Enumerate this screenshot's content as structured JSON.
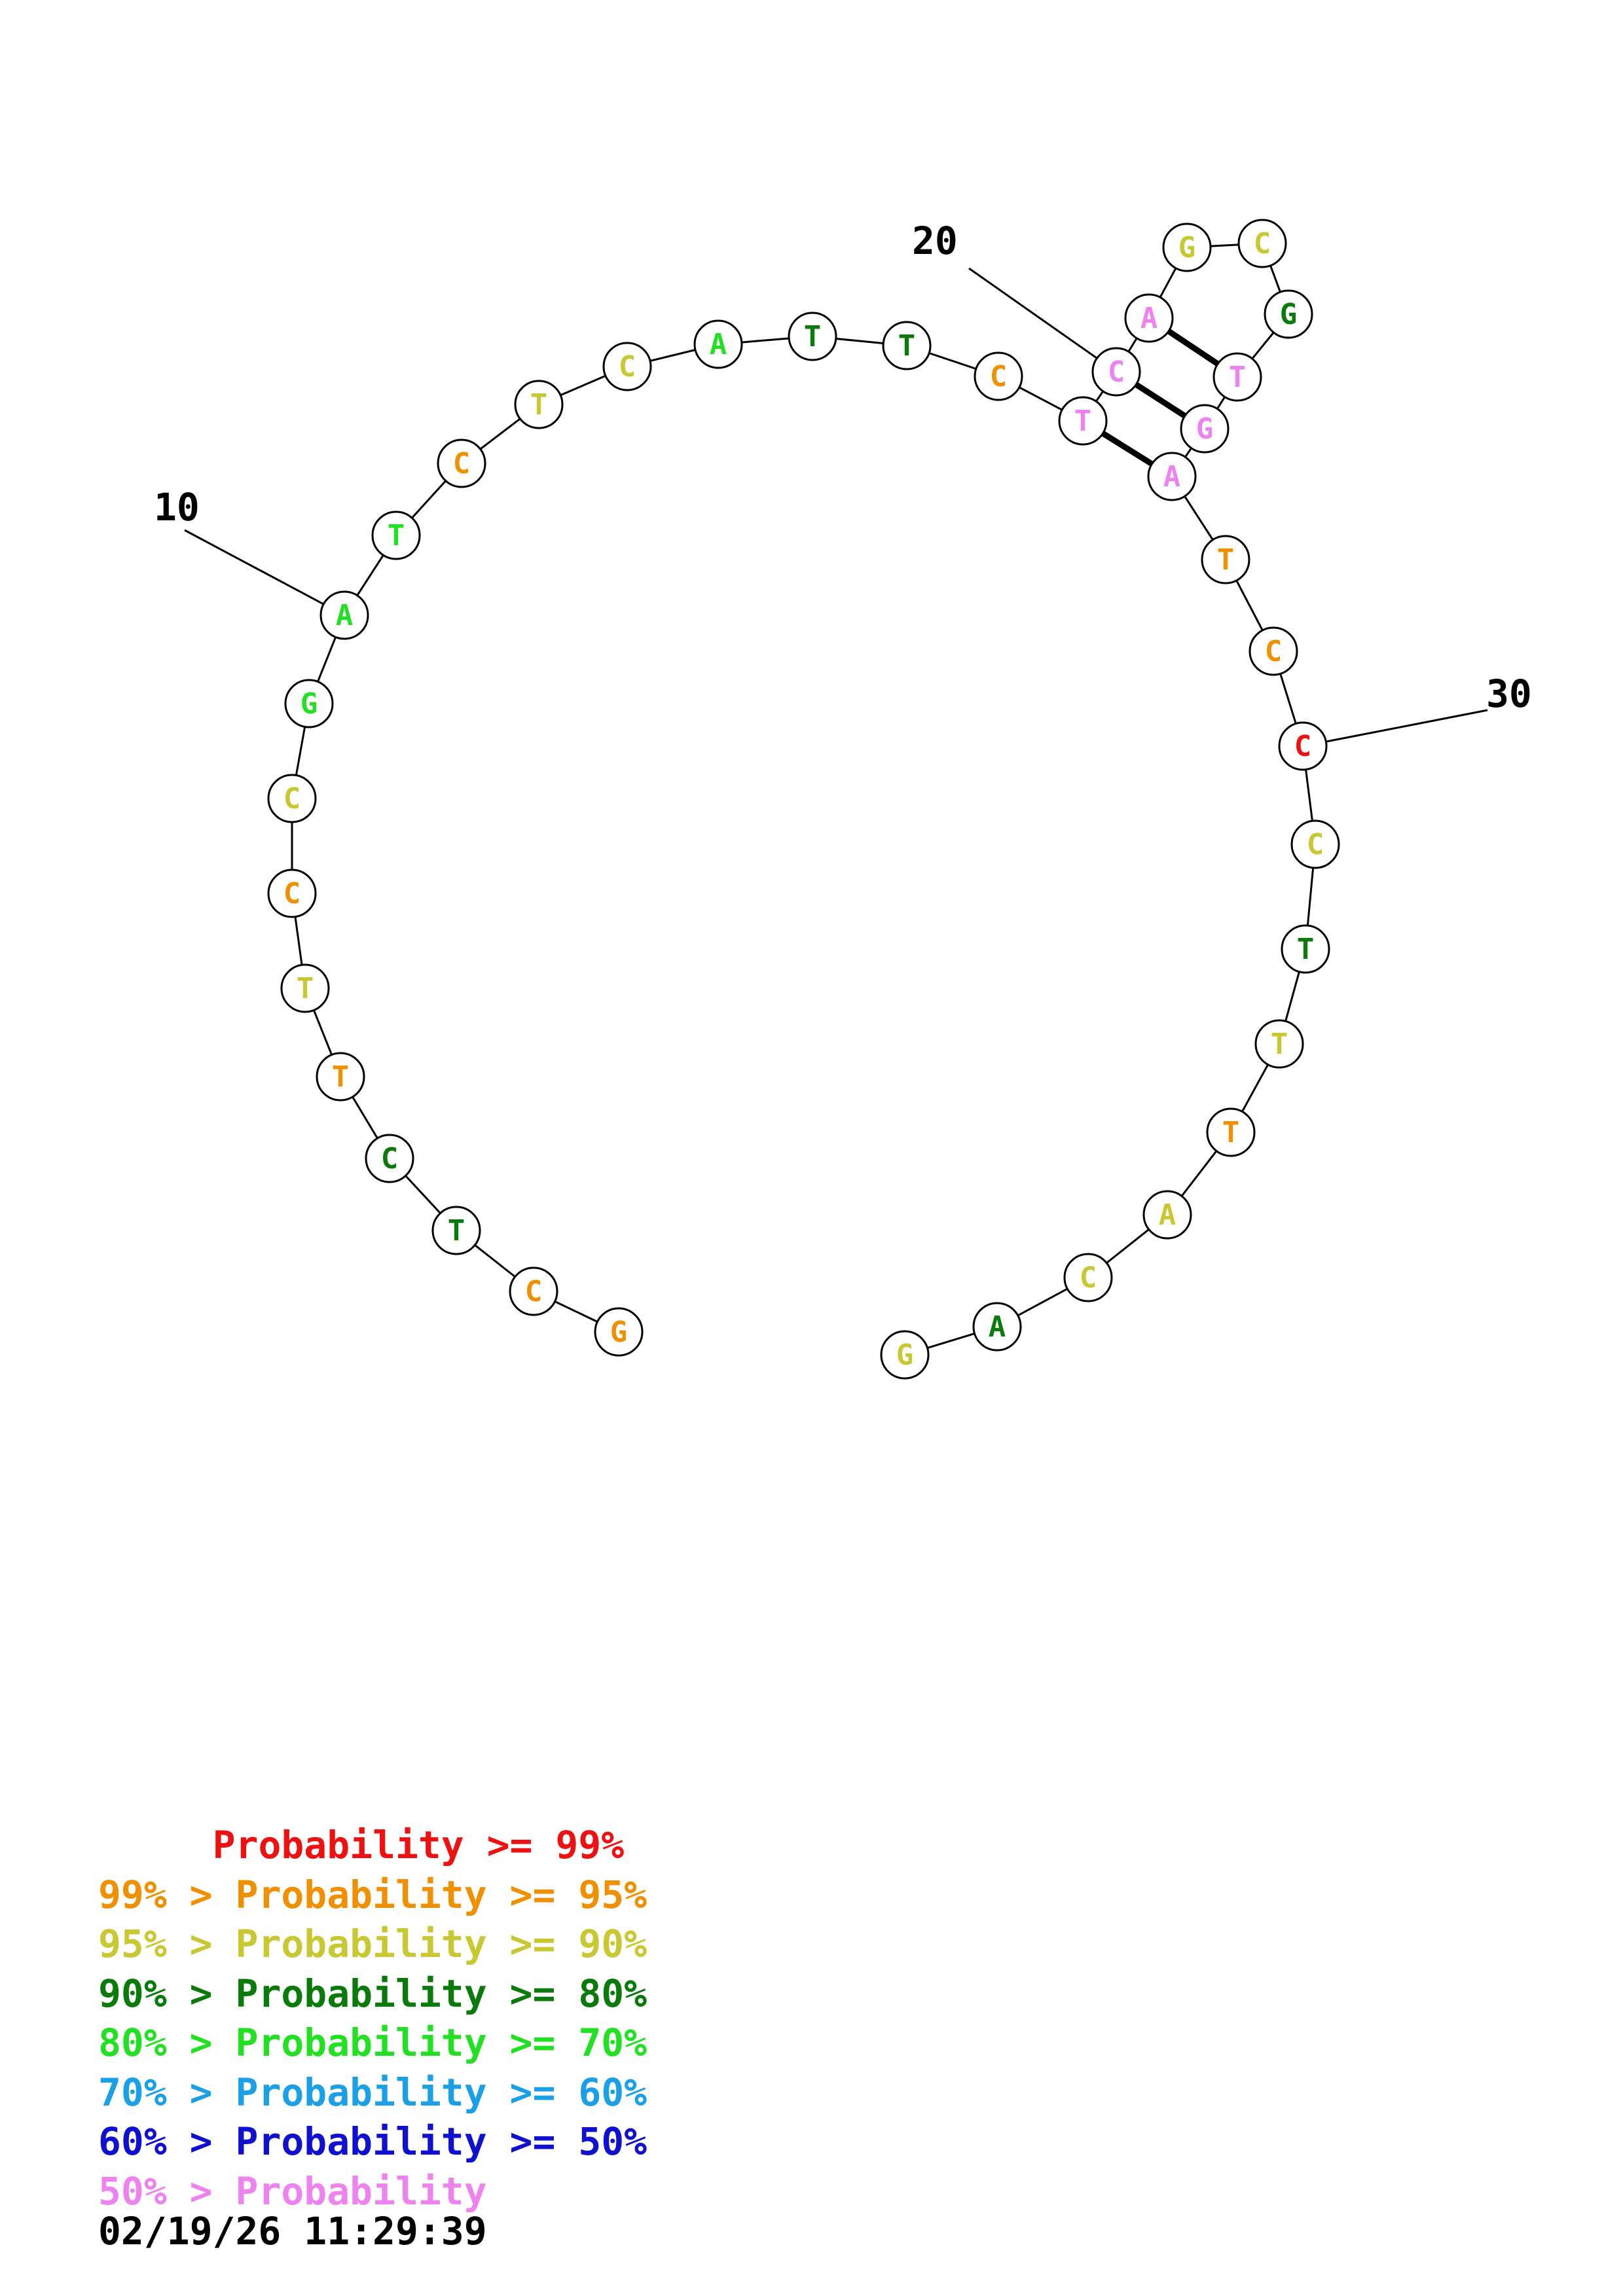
{
  "sequence": [
    {
      "base": "G",
      "color": "#F09000"
    },
    {
      "base": "C",
      "color": "#F09000"
    },
    {
      "base": "T",
      "color": "#0A7A0A"
    },
    {
      "base": "C",
      "color": "#0A7A0A"
    },
    {
      "base": "T",
      "color": "#F09000"
    },
    {
      "base": "T",
      "color": "#C8C832"
    },
    {
      "base": "C",
      "color": "#F09000"
    },
    {
      "base": "C",
      "color": "#C8C832"
    },
    {
      "base": "G",
      "color": "#22E022"
    },
    {
      "base": "A",
      "color": "#22E022"
    },
    {
      "base": "T",
      "color": "#22E022"
    },
    {
      "base": "C",
      "color": "#F09000"
    },
    {
      "base": "T",
      "color": "#C8C832"
    },
    {
      "base": "C",
      "color": "#C8C832"
    },
    {
      "base": "A",
      "color": "#22E022"
    },
    {
      "base": "T",
      "color": "#0A7A0A"
    },
    {
      "base": "T",
      "color": "#0A7A0A"
    },
    {
      "base": "C",
      "color": "#F09000"
    },
    {
      "base": "T",
      "color": "#EE82EE"
    },
    {
      "base": "C",
      "color": "#EE82EE"
    },
    {
      "base": "A",
      "color": "#EE82EE"
    },
    {
      "base": "G",
      "color": "#C8C832"
    },
    {
      "base": "C",
      "color": "#C8C832"
    },
    {
      "base": "G",
      "color": "#0A7A0A"
    },
    {
      "base": "T",
      "color": "#EE82EE"
    },
    {
      "base": "G",
      "color": "#EE82EE"
    },
    {
      "base": "A",
      "color": "#EE82EE"
    },
    {
      "base": "T",
      "color": "#F09000"
    },
    {
      "base": "C",
      "color": "#F09000"
    },
    {
      "base": "C",
      "color": "#EE1111"
    },
    {
      "base": "C",
      "color": "#C8C832"
    },
    {
      "base": "T",
      "color": "#0A7A0A"
    },
    {
      "base": "T",
      "color": "#C8C832"
    },
    {
      "base": "T",
      "color": "#F09000"
    },
    {
      "base": "A",
      "color": "#C8C832"
    },
    {
      "base": "C",
      "color": "#C8C832"
    },
    {
      "base": "A",
      "color": "#0A7A0A"
    },
    {
      "base": "G",
      "color": "#C8C832"
    }
  ],
  "pairs": [
    [
      19,
      27
    ],
    [
      20,
      26
    ],
    [
      21,
      25
    ]
  ],
  "position_labels": [
    {
      "position": 10,
      "text": "10"
    },
    {
      "position": 20,
      "text": "20"
    },
    {
      "position": 30,
      "text": "30"
    }
  ],
  "legend": [
    {
      "prefix": "    ",
      "rest": " Probability >= 99%",
      "color": "#EE1111"
    },
    {
      "prefix": "99% >",
      "rest": " Probability >= 95%",
      "color": "#F09000"
    },
    {
      "prefix": "95% >",
      "rest": " Probability >= 90%",
      "color": "#C8C832"
    },
    {
      "prefix": "90% >",
      "rest": " Probability >= 80%",
      "color": "#0A7A0A"
    },
    {
      "prefix": "80% >",
      "rest": " Probability >= 70%",
      "color": "#22E022"
    },
    {
      "prefix": "70% >",
      "rest": " Probability >= 60%",
      "color": "#1AA0E6"
    },
    {
      "prefix": "60% >",
      "rest": " Probability >= 50%",
      "color": "#1010D0"
    },
    {
      "prefix": "50% >",
      "rest": " Probability",
      "color": "#EE82EE"
    }
  ],
  "timestamp": "02/19/26 11:29:39"
}
